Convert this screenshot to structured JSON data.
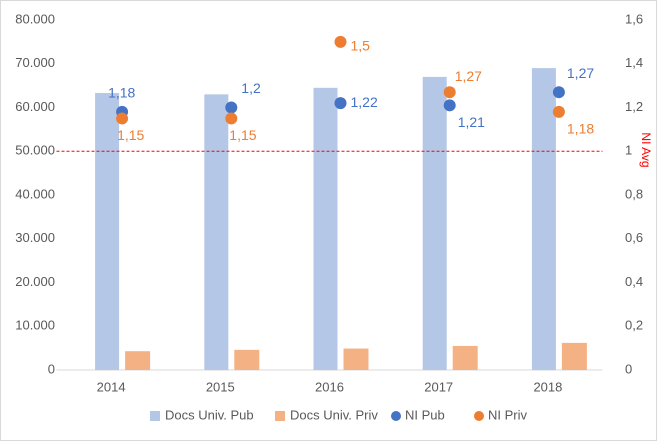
{
  "chart_data": {
    "type": "bar",
    "categories": [
      "2014",
      "2015",
      "2016",
      "2017",
      "2018"
    ],
    "series": [
      {
        "name": "Docs Univ. Pub",
        "color": "#b4c7e7",
        "values": [
          63300,
          63000,
          64500,
          67000,
          69000
        ]
      },
      {
        "name": "Docs Univ. Priv",
        "color": "#f4b183",
        "values": [
          4300,
          4600,
          4900,
          5500,
          6200
        ]
      },
      {
        "name": "NI Pub",
        "type": "scatter",
        "axis": "y2",
        "color": "#4472c4",
        "values": [
          1.18,
          1.2,
          1.22,
          1.21,
          1.27
        ],
        "value_labels": [
          "1,18",
          "1,2",
          "1,22",
          "1,21",
          "1,27"
        ]
      },
      {
        "name": "NI Priv",
        "type": "scatter",
        "axis": "y2",
        "color": "#ed7d31",
        "values": [
          1.15,
          1.15,
          1.5,
          1.27,
          1.18
        ],
        "value_labels": [
          "1,15",
          "1,15",
          "1,5",
          "1,27",
          "1,18"
        ]
      }
    ],
    "ylim": [
      0,
      80000
    ],
    "yticks": [
      0,
      {
        "value": 10000,
        "label": "10.000"
      },
      {
        "value": 20000,
        "label": "20.000"
      },
      {
        "value": 30000,
        "label": "30.000"
      },
      {
        "value": 40000,
        "label": "40.000"
      },
      {
        "value": 50000,
        "label": "50.000"
      },
      {
        "value": 60000,
        "label": "60.000"
      },
      {
        "value": 70000,
        "label": "70.000"
      },
      {
        "value": 80000,
        "label": "80.000"
      }
    ],
    "y2lim": [
      0,
      1.6
    ],
    "y2ticks": [
      0,
      {
        "value": 0.2,
        "label": "0,2"
      },
      {
        "value": 0.4,
        "label": "0,4"
      },
      {
        "value": 0.6,
        "label": "0,6"
      },
      {
        "value": 0.8,
        "label": "0,8"
      },
      1,
      {
        "value": 1.2,
        "label": "1,2"
      },
      {
        "value": 1.4,
        "label": "1,4"
      },
      {
        "value": 1.6,
        "label": "1,6"
      }
    ],
    "y2label": "NI Avg",
    "reference_line_y2": 1,
    "reference_line_color": "#ff0000",
    "legend": "bottom"
  }
}
